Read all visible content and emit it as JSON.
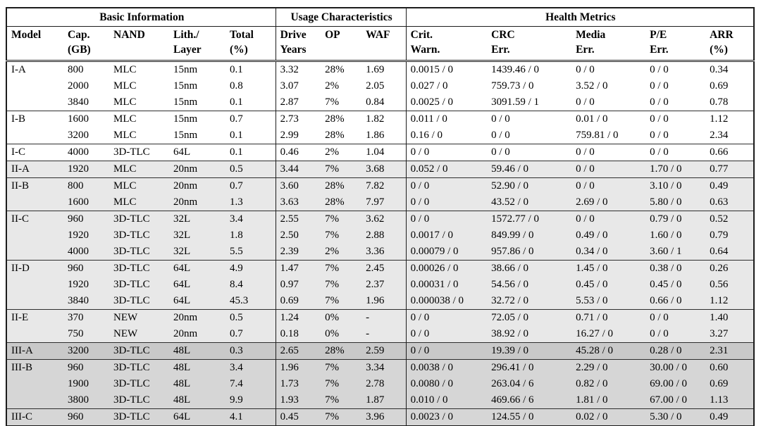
{
  "page": {
    "background": "#ffffff",
    "border_color": "#1c1c1c"
  },
  "table": {
    "header_groups": [
      {
        "label": "Basic Information",
        "colspan": 5
      },
      {
        "label": "Usage Characteristics",
        "colspan": 3
      },
      {
        "label": "Health Metrics",
        "colspan": 5
      }
    ],
    "columns": [
      {
        "id": "model",
        "line1": "Model",
        "line2": ""
      },
      {
        "id": "capacity-gb",
        "line1": "Cap.",
        "line2": "(GB)"
      },
      {
        "id": "nand",
        "line1": "NAND",
        "line2": ""
      },
      {
        "id": "lith-layer",
        "line1": "Lith./",
        "line2": "Layer"
      },
      {
        "id": "total-pct",
        "line1": "Total",
        "line2": "(%)"
      },
      {
        "id": "drive-years",
        "line1": "Drive",
        "line2": "Years"
      },
      {
        "id": "op",
        "line1": "OP",
        "line2": ""
      },
      {
        "id": "waf",
        "line1": "WAF",
        "line2": ""
      },
      {
        "id": "crit-warn",
        "line1": "Crit.",
        "line2": "Warn."
      },
      {
        "id": "crc-err",
        "line1": "CRC",
        "line2": "Err."
      },
      {
        "id": "media-err",
        "line1": "Media",
        "line2": "Err."
      },
      {
        "id": "pe-err",
        "line1": "P/E",
        "line2": "Err."
      },
      {
        "id": "arr-pct",
        "line1": "ARR",
        "line2": "(%)"
      }
    ],
    "shades": {
      "group_I": "#ffffff",
      "group_II": "#e8e8e8",
      "group_III_A": "#c9c9c9",
      "group_III_BC": "#d6d6d6"
    },
    "row_groups": [
      {
        "name": "I-A",
        "shade": "#ffffff",
        "rows": [
          [
            "I-A",
            "800",
            "MLC",
            "15nm",
            "0.1",
            "3.32",
            "28%",
            "1.69",
            "0.0015 / 0",
            "1439.46 / 0",
            "0 / 0",
            "0 / 0",
            "0.34"
          ],
          [
            "",
            "2000",
            "MLC",
            "15nm",
            "0.8",
            "3.07",
            "2%",
            "2.05",
            "0.027 / 0",
            "759.73 / 0",
            "3.52 / 0",
            "0 / 0",
            "0.69"
          ],
          [
            "",
            "3840",
            "MLC",
            "15nm",
            "0.1",
            "2.87",
            "7%",
            "0.84",
            "0.0025 / 0",
            "3091.59 / 1",
            "0 / 0",
            "0 / 0",
            "0.78"
          ]
        ]
      },
      {
        "name": "I-B",
        "shade": "#ffffff",
        "rows": [
          [
            "I-B",
            "1600",
            "MLC",
            "15nm",
            "0.7",
            "2.73",
            "28%",
            "1.82",
            "0.011 / 0",
            "0 / 0",
            "0.01 / 0",
            "0 / 0",
            "1.12"
          ],
          [
            "",
            "3200",
            "MLC",
            "15nm",
            "0.1",
            "2.99",
            "28%",
            "1.86",
            "0.16 / 0",
            "0 / 0",
            "759.81 / 0",
            "0 / 0",
            "2.34"
          ]
        ]
      },
      {
        "name": "I-C",
        "shade": "#ffffff",
        "rows": [
          [
            "I-C",
            "4000",
            "3D-TLC",
            "64L",
            "0.1",
            "0.46",
            "2%",
            "1.04",
            "0 / 0",
            "0 / 0",
            "0 / 0",
            "0 / 0",
            "0.66"
          ]
        ]
      },
      {
        "name": "II-A",
        "shade": "#e8e8e8",
        "rows": [
          [
            "II-A",
            "1920",
            "MLC",
            "20nm",
            "0.5",
            "3.44",
            "7%",
            "3.68",
            "0.052 / 0",
            "59.46 / 0",
            "0 / 0",
            "1.70 / 0",
            "0.77"
          ]
        ]
      },
      {
        "name": "II-B",
        "shade": "#e8e8e8",
        "rows": [
          [
            "II-B",
            "800",
            "MLC",
            "20nm",
            "0.7",
            "3.60",
            "28%",
            "7.82",
            "0 / 0",
            "52.90 / 0",
            "0 / 0",
            "3.10 / 0",
            "0.49"
          ],
          [
            "",
            "1600",
            "MLC",
            "20nm",
            "1.3",
            "3.63",
            "28%",
            "7.97",
            "0 / 0",
            "43.52 / 0",
            "2.69 / 0",
            "5.80 / 0",
            "0.63"
          ]
        ]
      },
      {
        "name": "II-C",
        "shade": "#e8e8e8",
        "rows": [
          [
            "II-C",
            "960",
            "3D-TLC",
            "32L",
            "3.4",
            "2.55",
            "7%",
            "3.62",
            "0 / 0",
            "1572.77 / 0",
            "0 / 0",
            "0.79 / 0",
            "0.52"
          ],
          [
            "",
            "1920",
            "3D-TLC",
            "32L",
            "1.8",
            "2.50",
            "7%",
            "2.88",
            "0.0017 / 0",
            "849.99 / 0",
            "0.49 / 0",
            "1.60 / 0",
            "0.79"
          ],
          [
            "",
            "4000",
            "3D-TLC",
            "32L",
            "5.5",
            "2.39",
            "2%",
            "3.36",
            "0.00079 / 0",
            "957.86 / 0",
            "0.34 / 0",
            "3.60 / 1",
            "0.64"
          ]
        ]
      },
      {
        "name": "II-D",
        "shade": "#e8e8e8",
        "rows": [
          [
            "II-D",
            "960",
            "3D-TLC",
            "64L",
            "4.9",
            "1.47",
            "7%",
            "2.45",
            "0.00026 / 0",
            "38.66 / 0",
            "1.45 / 0",
            "0.38 / 0",
            "0.26"
          ],
          [
            "",
            "1920",
            "3D-TLC",
            "64L",
            "8.4",
            "0.97",
            "7%",
            "2.37",
            "0.00031 / 0",
            "54.56 / 0",
            "0.45 / 0",
            "0.45 / 0",
            "0.56"
          ],
          [
            "",
            "3840",
            "3D-TLC",
            "64L",
            "45.3",
            "0.69",
            "7%",
            "1.96",
            "0.000038 / 0",
            "32.72 / 0",
            "5.53 / 0",
            "0.66 / 0",
            "1.12"
          ]
        ]
      },
      {
        "name": "II-E",
        "shade": "#e8e8e8",
        "rows": [
          [
            "II-E",
            "370",
            "NEW",
            "20nm",
            "0.5",
            "1.24",
            "0%",
            "-",
            "0 / 0",
            "72.05 / 0",
            "0.71 / 0",
            "0 / 0",
            "1.40"
          ],
          [
            "",
            "750",
            "NEW",
            "20nm",
            "0.7",
            "0.18",
            "0%",
            "-",
            "0 / 0",
            "38.92 / 0",
            "16.27 / 0",
            "0 / 0",
            "3.27"
          ]
        ]
      },
      {
        "name": "III-A",
        "shade": "#c9c9c9",
        "rows": [
          [
            "III-A",
            "3200",
            "3D-TLC",
            "48L",
            "0.3",
            "2.65",
            "28%",
            "2.59",
            "0 / 0",
            "19.39 / 0",
            "45.28 / 0",
            "0.28 / 0",
            "2.31"
          ]
        ]
      },
      {
        "name": "III-B",
        "shade": "#d6d6d6",
        "rows": [
          [
            "III-B",
            "960",
            "3D-TLC",
            "48L",
            "3.4",
            "1.96",
            "7%",
            "3.34",
            "0.0038 / 0",
            "296.41 / 0",
            "2.29 / 0",
            "30.00 / 0",
            "0.60"
          ],
          [
            "",
            "1900",
            "3D-TLC",
            "48L",
            "7.4",
            "1.73",
            "7%",
            "2.78",
            "0.0080 / 0",
            "263.04 / 6",
            "0.82 / 0",
            "69.00 / 0",
            "0.69"
          ],
          [
            "",
            "3800",
            "3D-TLC",
            "48L",
            "9.9",
            "1.93",
            "7%",
            "1.87",
            "0.010 / 0",
            "469.66 / 6",
            "1.81 / 0",
            "67.00 / 0",
            "1.13"
          ]
        ]
      },
      {
        "name": "III-C",
        "shade": "#d6d6d6",
        "rows": [
          [
            "III-C",
            "960",
            "3D-TLC",
            "64L",
            "4.1",
            "0.45",
            "7%",
            "3.96",
            "0.0023 / 0",
            "124.55 / 0",
            "0.02 / 0",
            "5.30 / 0",
            "0.49"
          ]
        ]
      }
    ]
  }
}
